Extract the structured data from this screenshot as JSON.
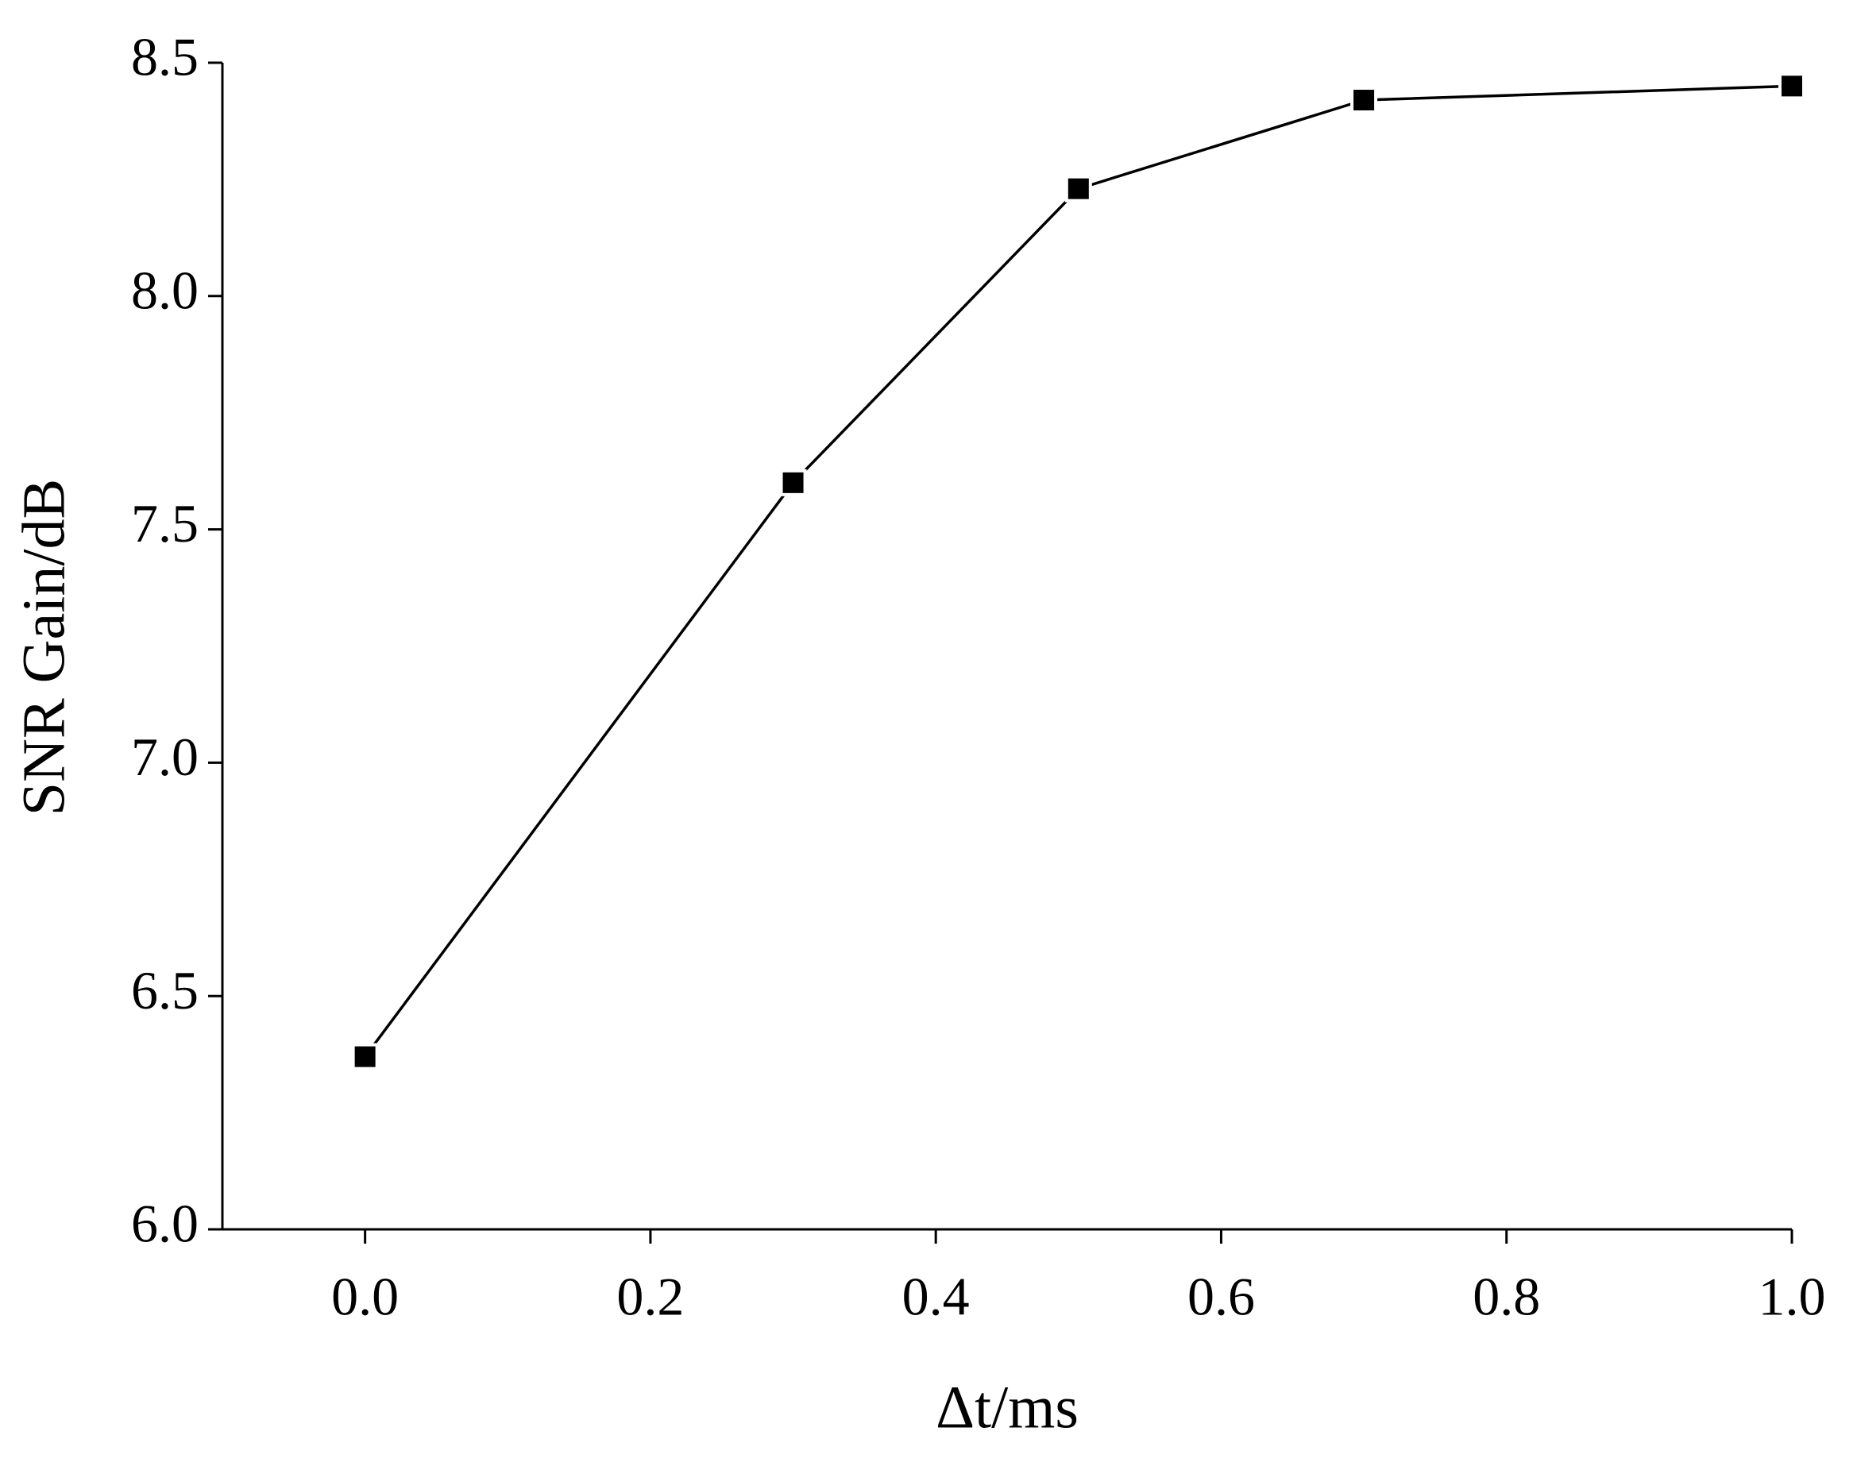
{
  "chart_data": {
    "type": "line",
    "x_label": "Δt/ms",
    "y_label": "SNR Gain/dB",
    "x": [
      0,
      0.3,
      0.5,
      0.7,
      1.0
    ],
    "series": [
      {
        "color": "#000000",
        "values": [
          6.37,
          7.6,
          8.23,
          8.42,
          8.45
        ]
      }
    ],
    "xlim": [
      -0.1,
      1.0
    ],
    "xticks": [
      {
        "value": 0,
        "label": "0.0"
      },
      {
        "value": 0.2,
        "label": "0.2"
      },
      {
        "value": 0.4,
        "label": "0.4"
      },
      {
        "value": 0.6,
        "label": "0.6"
      },
      {
        "value": 0.8,
        "label": "0.8"
      },
      {
        "value": 1.0,
        "label": "1.0"
      }
    ],
    "ylim": [
      6.0,
      8.5
    ],
    "yticks": [
      {
        "value": 6.0,
        "label": "6.0"
      },
      {
        "value": 6.5,
        "label": "6.5"
      },
      {
        "value": 7.0,
        "label": "7.0"
      },
      {
        "value": 7.5,
        "label": "7.5"
      },
      {
        "value": 8.0,
        "label": "8.0"
      },
      {
        "value": 8.5,
        "label": "8.5"
      }
    ],
    "grid": false,
    "marker": "square"
  }
}
